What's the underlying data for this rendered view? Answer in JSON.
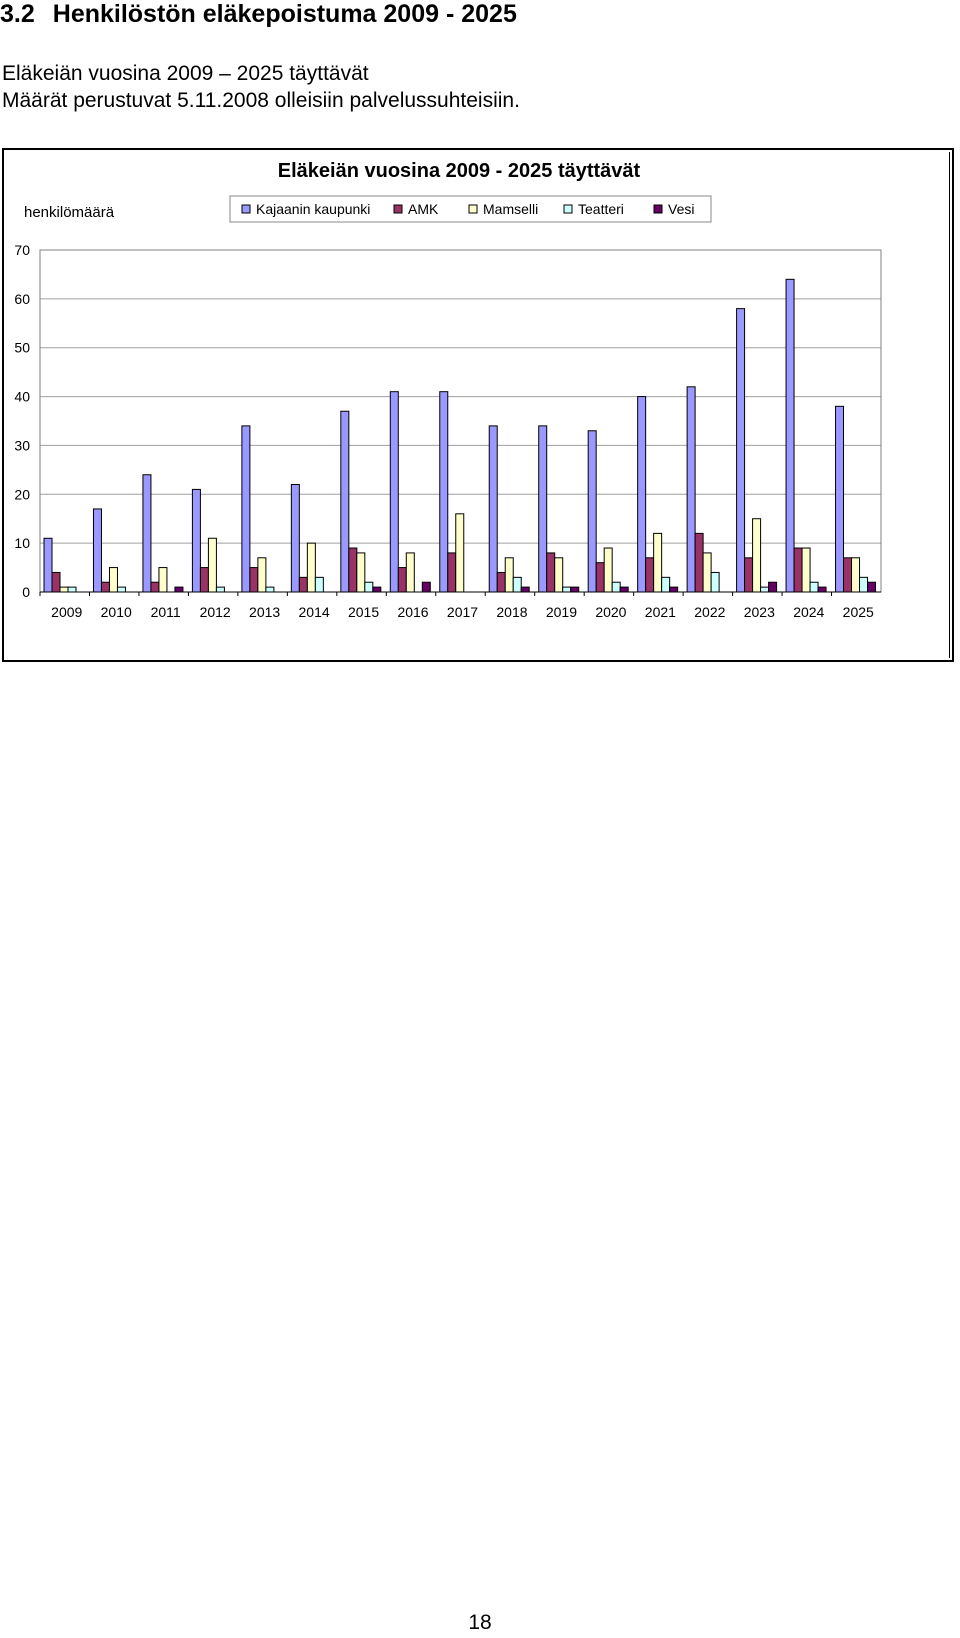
{
  "heading": {
    "number": "3.2",
    "text": "Henkilöstön eläkepoistuma 2009 - 2025"
  },
  "intro": {
    "line1": "Eläkeiän vuosina 2009 – 2025 täyttävät",
    "line2": "Määrät perustuvat 5.11.2008 olleisiin palvelussuhteisiin."
  },
  "page_number": "18",
  "chart_data": {
    "type": "bar",
    "title": "Eläkeiän vuosina 2009 - 2025 täyttävät",
    "ylabel": "henkilömäärä",
    "xlabel": "",
    "ylim": [
      0,
      70
    ],
    "yticks": [
      "0",
      "10",
      "20",
      "30",
      "40",
      "50",
      "60",
      "70"
    ],
    "grid": true,
    "legend_position": "top",
    "categories": [
      "2009",
      "2010",
      "2011",
      "2012",
      "2013",
      "2014",
      "2015",
      "2016",
      "2017",
      "2018",
      "2019",
      "2020",
      "2021",
      "2022",
      "2023",
      "2024",
      "2025"
    ],
    "series": [
      {
        "name": "Kajaanin kaupunki",
        "color": "#9999ff",
        "values": [
          11,
          17,
          24,
          21,
          34,
          22,
          37,
          41,
          41,
          34,
          34,
          33,
          40,
          42,
          58,
          64,
          38
        ]
      },
      {
        "name": "AMK",
        "color": "#993366",
        "values": [
          4,
          2,
          2,
          5,
          5,
          3,
          9,
          5,
          8,
          4,
          8,
          6,
          7,
          12,
          7,
          9,
          7
        ]
      },
      {
        "name": "Mamselli",
        "color": "#ffffcc",
        "values": [
          1,
          5,
          5,
          11,
          7,
          10,
          8,
          8,
          16,
          7,
          7,
          9,
          12,
          8,
          15,
          9,
          7
        ]
      },
      {
        "name": "Teatteri",
        "color": "#ccffff",
        "values": [
          1,
          1,
          0,
          1,
          1,
          3,
          2,
          0,
          0,
          3,
          1,
          2,
          3,
          4,
          1,
          2,
          3
        ]
      },
      {
        "name": "Vesi",
        "color": "#660066",
        "values": [
          0,
          0,
          1,
          0,
          0,
          0,
          1,
          2,
          0,
          1,
          1,
          1,
          1,
          0,
          2,
          1,
          2
        ]
      }
    ]
  }
}
